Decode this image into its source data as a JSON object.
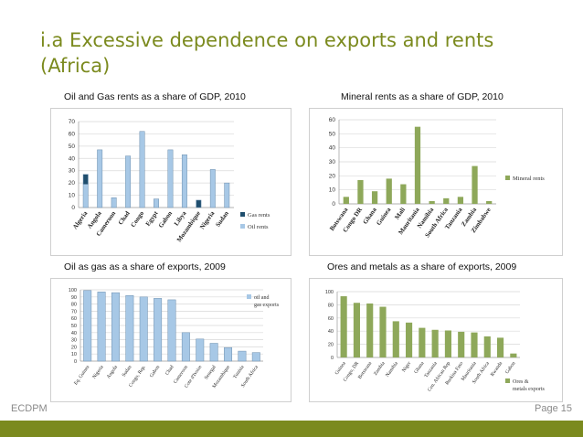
{
  "slide": {
    "title_line1": "i.a Excessive dependence on exports and rents",
    "title_line2": "(Africa)",
    "footer_left": "ECDPM",
    "footer_right": "Page 15"
  },
  "colors": {
    "accent": "#7b8a1e",
    "oil_rents": "#a7c8e6",
    "gas_rents": "#1f4e6e",
    "green_bar": "#8ea85a"
  },
  "chart_data": [
    {
      "type": "bar",
      "title": "Oil and Gas rents as a share of GDP, 2010",
      "categories": [
        "Algeria",
        "Angola",
        "Cameroon",
        "Chad",
        "Congo",
        "Egypt",
        "Gabon",
        "Libya",
        "Mozambique",
        "Nigeria",
        "Sudan"
      ],
      "series": [
        {
          "name": "Gas rents",
          "values": [
            8,
            0,
            0,
            0,
            0,
            0,
            0,
            0,
            6,
            0,
            0
          ]
        },
        {
          "name": "Oil rents",
          "values": [
            19,
            47,
            8,
            42,
            62,
            7,
            47,
            43,
            0,
            31,
            20
          ]
        }
      ],
      "stacked": true,
      "yticks": [
        "0",
        "10",
        "20",
        "30",
        "40",
        "50",
        "60",
        "70"
      ],
      "ylim": [
        0,
        70
      ],
      "legend_position": "right"
    },
    {
      "type": "bar",
      "title": "Mineral rents as a share of GDP, 2010",
      "categories": [
        "Botswana",
        "Congo DR",
        "Ghana",
        "Guinea",
        "Mali",
        "Mauritania",
        "Namibia",
        "South Africa",
        "Tanzania",
        "Zambia",
        "Zimbabwe"
      ],
      "series": [
        {
          "name": "Mineral rents",
          "values": [
            5,
            17,
            9,
            18,
            14,
            55,
            2,
            4,
            5,
            27,
            2
          ]
        }
      ],
      "yticks": [
        "0",
        "10",
        "20",
        "30",
        "40",
        "50",
        "60"
      ],
      "ylim": [
        0,
        60
      ],
      "legend_position": "right"
    },
    {
      "type": "bar",
      "title": "Oil as gas as a share of exports, 2009",
      "categories": [
        "Eq. Guinea",
        "Nigeria",
        "Angola",
        "Sudan",
        "Congo, Rep.",
        "Gabon",
        "Chad",
        "Cameroon",
        "Cote d'Ivoire",
        "Senegal",
        "Mozambique",
        "Tunisia",
        "South Africa"
      ],
      "series": [
        {
          "name": "oil and gas exports",
          "values": [
            99,
            97,
            96,
            92,
            90,
            88,
            86,
            40,
            31,
            25,
            19,
            14,
            12
          ]
        }
      ],
      "yticks": [
        "0",
        "10",
        "20",
        "30",
        "40",
        "50",
        "60",
        "70",
        "80",
        "90",
        "100"
      ],
      "ylim": [
        0,
        100
      ],
      "legend_position": "top-right"
    },
    {
      "type": "bar",
      "title": "Ores and metals as a share of exports, 2009",
      "categories": [
        "Guinea",
        "Congo, DR",
        "Botswana",
        "Zambia",
        "Namibia",
        "Niger",
        "Ghana",
        "Tanzania",
        "Cen. African Rep",
        "Burkina Faso",
        "Mauritania",
        "South Africa",
        "Rwanda",
        "Gabon"
      ],
      "series": [
        {
          "name": "Ores & metals exports",
          "values": [
            93,
            83,
            82,
            77,
            55,
            53,
            45,
            42,
            41,
            39,
            38,
            32,
            30,
            6
          ]
        }
      ],
      "yticks": [
        "0",
        "20",
        "40",
        "60",
        "80",
        "100"
      ],
      "ylim": [
        0,
        100
      ],
      "legend_position": "bottom-right"
    }
  ]
}
